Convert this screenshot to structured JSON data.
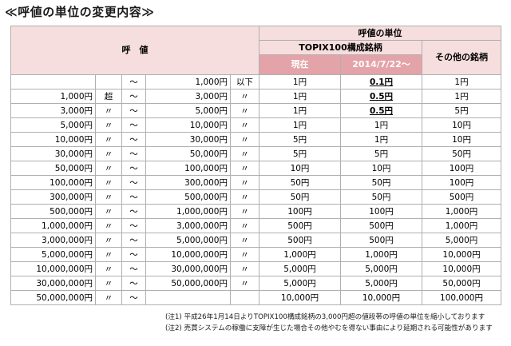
{
  "title": "≪呼値の単位の変更内容≫",
  "header": {
    "price_label": "呼　値",
    "tick_unit": "呼値の単位",
    "topix": "TOPIX100構成銘柄",
    "current": "現在",
    "new_date": "2014/7/22～",
    "others": "その他の銘柄"
  },
  "rows": [
    {
      "low": "",
      "op": "",
      "tilde": "～",
      "high": "1,000円",
      "suffix": "以下",
      "current": "1円",
      "new": "0.1円",
      "new_emph": true,
      "other": "1円"
    },
    {
      "low": "1,000円",
      "op": "超",
      "tilde": "～",
      "high": "3,000円",
      "suffix": "〃",
      "current": "1円",
      "new": "0.5円",
      "new_emph": true,
      "other": "1円"
    },
    {
      "low": "3,000円",
      "op": "〃",
      "tilde": "～",
      "high": "5,000円",
      "suffix": "〃",
      "current": "1円",
      "new": "0.5円",
      "new_emph": true,
      "other": "5円"
    },
    {
      "low": "5,000円",
      "op": "〃",
      "tilde": "～",
      "high": "10,000円",
      "suffix": "〃",
      "current": "1円",
      "new": "1円",
      "new_emph": false,
      "other": "10円"
    },
    {
      "low": "10,000円",
      "op": "〃",
      "tilde": "～",
      "high": "30,000円",
      "suffix": "〃",
      "current": "5円",
      "new": "1円",
      "new_emph": false,
      "other": "10円"
    },
    {
      "low": "30,000円",
      "op": "〃",
      "tilde": "～",
      "high": "50,000円",
      "suffix": "〃",
      "current": "5円",
      "new": "5円",
      "new_emph": false,
      "other": "50円"
    },
    {
      "low": "50,000円",
      "op": "〃",
      "tilde": "～",
      "high": "100,000円",
      "suffix": "〃",
      "current": "10円",
      "new": "10円",
      "new_emph": false,
      "other": "100円"
    },
    {
      "low": "100,000円",
      "op": "〃",
      "tilde": "～",
      "high": "300,000円",
      "suffix": "〃",
      "current": "50円",
      "new": "50円",
      "new_emph": false,
      "other": "100円"
    },
    {
      "low": "300,000円",
      "op": "〃",
      "tilde": "～",
      "high": "500,000円",
      "suffix": "〃",
      "current": "50円",
      "new": "50円",
      "new_emph": false,
      "other": "500円"
    },
    {
      "low": "500,000円",
      "op": "〃",
      "tilde": "～",
      "high": "1,000,000円",
      "suffix": "〃",
      "current": "100円",
      "new": "100円",
      "new_emph": false,
      "other": "1,000円"
    },
    {
      "low": "1,000,000円",
      "op": "〃",
      "tilde": "～",
      "high": "3,000,000円",
      "suffix": "〃",
      "current": "500円",
      "new": "500円",
      "new_emph": false,
      "other": "1,000円"
    },
    {
      "low": "3,000,000円",
      "op": "〃",
      "tilde": "～",
      "high": "5,000,000円",
      "suffix": "〃",
      "current": "500円",
      "new": "500円",
      "new_emph": false,
      "other": "5,000円"
    },
    {
      "low": "5,000,000円",
      "op": "〃",
      "tilde": "～",
      "high": "10,000,000円",
      "suffix": "〃",
      "current": "1,000円",
      "new": "1,000円",
      "new_emph": false,
      "other": "10,000円"
    },
    {
      "low": "10,000,000円",
      "op": "〃",
      "tilde": "～",
      "high": "30,000,000円",
      "suffix": "〃",
      "current": "5,000円",
      "new": "5,000円",
      "new_emph": false,
      "other": "10,000円"
    },
    {
      "low": "30,000,000円",
      "op": "〃",
      "tilde": "～",
      "high": "50,000,000円",
      "suffix": "〃",
      "current": "5,000円",
      "new": "5,000円",
      "new_emph": false,
      "other": "50,000円"
    },
    {
      "low": "50,000,000円",
      "op": "〃",
      "tilde": "～",
      "high": "",
      "suffix": "",
      "current": "10,000円",
      "new": "10,000円",
      "new_emph": false,
      "other": "100,000円"
    }
  ],
  "notes": [
    "(注1) 平成26年1月14日よりTOPIX100構成銘柄の3,000円超の値段帯の呼値の単位を縮小しております",
    "(注2) 売買システムの稼働に支障が生じた場合その他やむを得ない事由により延期される可能性があります"
  ]
}
